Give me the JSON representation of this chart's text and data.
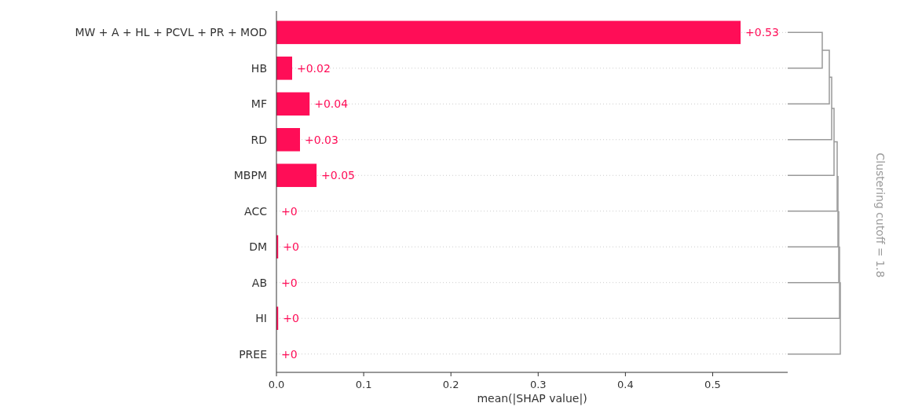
{
  "chart_data": {
    "type": "bar",
    "orientation": "horizontal",
    "categories": [
      "MW + A + HL + PCVL + PR + MOD",
      "HB",
      "MF",
      "RD",
      "MBPM",
      "ACC",
      "DM",
      "AB",
      "HI",
      "PREE"
    ],
    "values": [
      0.532,
      0.018,
      0.038,
      0.027,
      0.046,
      0,
      0.002,
      0,
      0.002,
      0
    ],
    "value_labels": [
      "+0.53",
      "+0.02",
      "+0.04",
      "+0.03",
      "+0.05",
      "+0",
      "+0",
      "+0",
      "+0",
      "+0"
    ],
    "color": "#ff0d57",
    "xlim": [
      0,
      0.586
    ],
    "xticks": [
      {
        "value": 0,
        "label": "0.0"
      },
      0.1,
      0.2,
      0.3,
      0.4,
      0.5
    ],
    "xlabel": "mean(|SHAP value|)",
    "grid": "y",
    "line_style": "dotted",
    "annotations": [
      "Clustering cutoff = 1.8"
    ]
  }
}
